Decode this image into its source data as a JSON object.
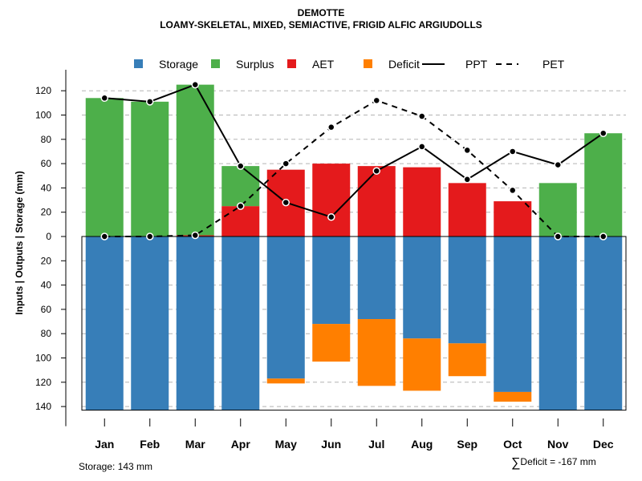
{
  "chart_data": {
    "type": "bar",
    "title": "DEMOTTE",
    "subtitle": "LOAMY-SKELETAL, MIXED, SEMIACTIVE, FRIGID ALFIC ARGIUDOLLS",
    "ylabel": "Inputs | Outputs | Storage    (mm)",
    "ylim": [
      -143,
      132
    ],
    "yticks": [
      120,
      100,
      80,
      60,
      40,
      20,
      0,
      -20,
      -40,
      -60,
      -80,
      -100,
      -120,
      -140
    ],
    "ytick_labels": [
      "120",
      "100",
      "80",
      "60",
      "40",
      "20",
      "0",
      "20",
      "40",
      "60",
      "80",
      "100",
      "120",
      "140"
    ],
    "categories": [
      "Jan",
      "Feb",
      "Mar",
      "Apr",
      "May",
      "Jun",
      "Jul",
      "Aug",
      "Sep",
      "Oct",
      "Nov",
      "Dec"
    ],
    "legend": [
      {
        "key": "storage",
        "label": "Storage",
        "kind": "box",
        "color": "#377eb8"
      },
      {
        "key": "surplus",
        "label": "Surplus",
        "kind": "box",
        "color": "#4daf4a"
      },
      {
        "key": "aet",
        "label": "AET",
        "kind": "box",
        "color": "#e41a1c"
      },
      {
        "key": "deficit",
        "label": "Deficit",
        "kind": "box",
        "color": "#ff7f00"
      },
      {
        "key": "ppt",
        "label": "PPT",
        "kind": "solid",
        "color": "#000000"
      },
      {
        "key": "pet",
        "label": "PET",
        "kind": "dashed",
        "color": "#000000"
      }
    ],
    "series": [
      {
        "name": "AET",
        "values": [
          0,
          0,
          1,
          25,
          55,
          60,
          58,
          57,
          44,
          29,
          0,
          0
        ]
      },
      {
        "name": "Surplus",
        "values": [
          114,
          111,
          124,
          33,
          0,
          0,
          0,
          0,
          0,
          0,
          44,
          85
        ]
      },
      {
        "name": "Storage",
        "values": [
          143,
          143,
          143,
          143,
          117,
          72,
          68,
          84,
          88,
          128,
          143,
          143
        ]
      },
      {
        "name": "Deficit",
        "values": [
          0,
          0,
          0,
          0,
          4,
          31,
          55,
          43,
          27,
          8,
          0,
          0
        ]
      },
      {
        "name": "PPT",
        "values": [
          114,
          111,
          125,
          58,
          28,
          16,
          54,
          74,
          47,
          70,
          59,
          85
        ]
      },
      {
        "name": "PET",
        "values": [
          0,
          0,
          1,
          25,
          60,
          90,
          112,
          99,
          71,
          38,
          0,
          0
        ]
      }
    ],
    "annotations": {
      "storage_text": "Storage: 143 mm",
      "deficit_symbol": "∑",
      "deficit_text": "Deficit = -167 mm"
    }
  }
}
